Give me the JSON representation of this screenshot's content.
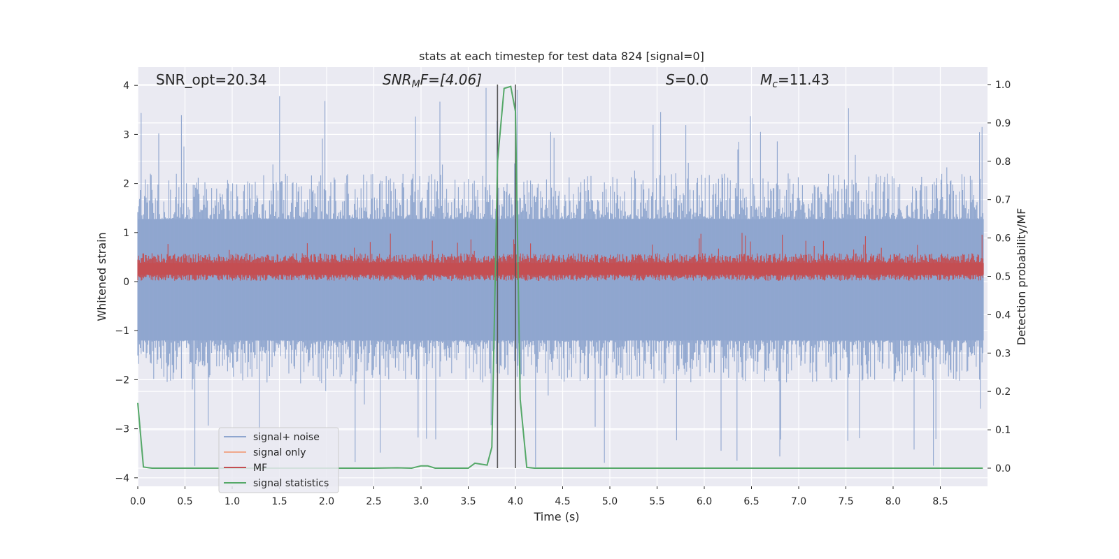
{
  "chart_data": {
    "type": "line",
    "title": "stats at each timestep for test data 824 [signal=0]",
    "xlabel": "Time (s)",
    "ylabel": "Whitened strain",
    "ylabel_right": "Detection probability/MF",
    "xlim": [
      0.0,
      9.0
    ],
    "ylim": [
      -4.2,
      4.35
    ],
    "ylim_right": [
      -0.05,
      1.05
    ],
    "xticks": [
      "0.0",
      "0.5",
      "1.0",
      "1.5",
      "2.0",
      "2.5",
      "3.0",
      "3.5",
      "4.0",
      "4.5",
      "5.0",
      "5.5",
      "6.0",
      "6.5",
      "7.0",
      "7.5",
      "8.0",
      "8.5"
    ],
    "yticks_left": [
      "4",
      "3",
      "2",
      "1",
      "0",
      "−1",
      "−2",
      "−3",
      "−4"
    ],
    "yticks_right": [
      "1.0",
      "0.9",
      "0.8",
      "0.7",
      "0.6",
      "0.5",
      "0.4",
      "0.3",
      "0.2",
      "0.1",
      "0.0"
    ],
    "grid": true,
    "legend_position": "lower-left",
    "annotations": {
      "snr_opt": "SNR_opt=20.34",
      "snr_mf_var": "SNR",
      "snr_mf_sub": "M",
      "snr_mf_rest": "F=[4.06]",
      "s_var": "S",
      "s_rest": "=0.0",
      "mc_var": "M",
      "mc_sub": "c",
      "mc_rest": "=11.43"
    },
    "vlines": [
      3.81,
      4.0
    ],
    "series": [
      {
        "name": "signal+ noise",
        "color": "#8fa6cf",
        "envelope": {
          "upper_typ": 1.7,
          "upper_max": 4.0,
          "lower_typ": -1.6,
          "lower_min": -3.85
        }
      },
      {
        "name": "signal only",
        "color": "#f0a88c",
        "values": [
          0.0,
          0.0
        ]
      },
      {
        "name": "MF",
        "color": "#c44e52",
        "envelope": {
          "low": 0.0,
          "high": 1.0,
          "typ_low": 0.08,
          "typ_high": 0.55
        }
      },
      {
        "name": "signal statistics",
        "color": "#55a868",
        "x": [
          0.0,
          0.06,
          0.15,
          0.5,
          1.0,
          1.5,
          2.0,
          2.5,
          2.75,
          2.9,
          3.0,
          3.07,
          3.15,
          3.5,
          3.57,
          3.7,
          3.75,
          3.81,
          3.88,
          3.95,
          4.0,
          4.05,
          4.12,
          4.2,
          5.0,
          6.0,
          7.0,
          8.0,
          8.95
        ],
        "values": [
          0.17,
          0.003,
          0.0,
          0.0,
          0.0,
          0.0,
          0.0,
          0.0,
          0.001,
          0.0,
          0.006,
          0.006,
          0.0,
          0.0,
          0.013,
          0.008,
          0.055,
          0.8,
          0.99,
          0.995,
          0.93,
          0.18,
          0.002,
          0.0,
          0.0,
          0.0,
          0.0,
          0.0,
          0.0
        ]
      }
    ]
  },
  "colors": {
    "plot_background": "#eaeaf2",
    "grid": "#ffffff",
    "vline": "#555555"
  }
}
